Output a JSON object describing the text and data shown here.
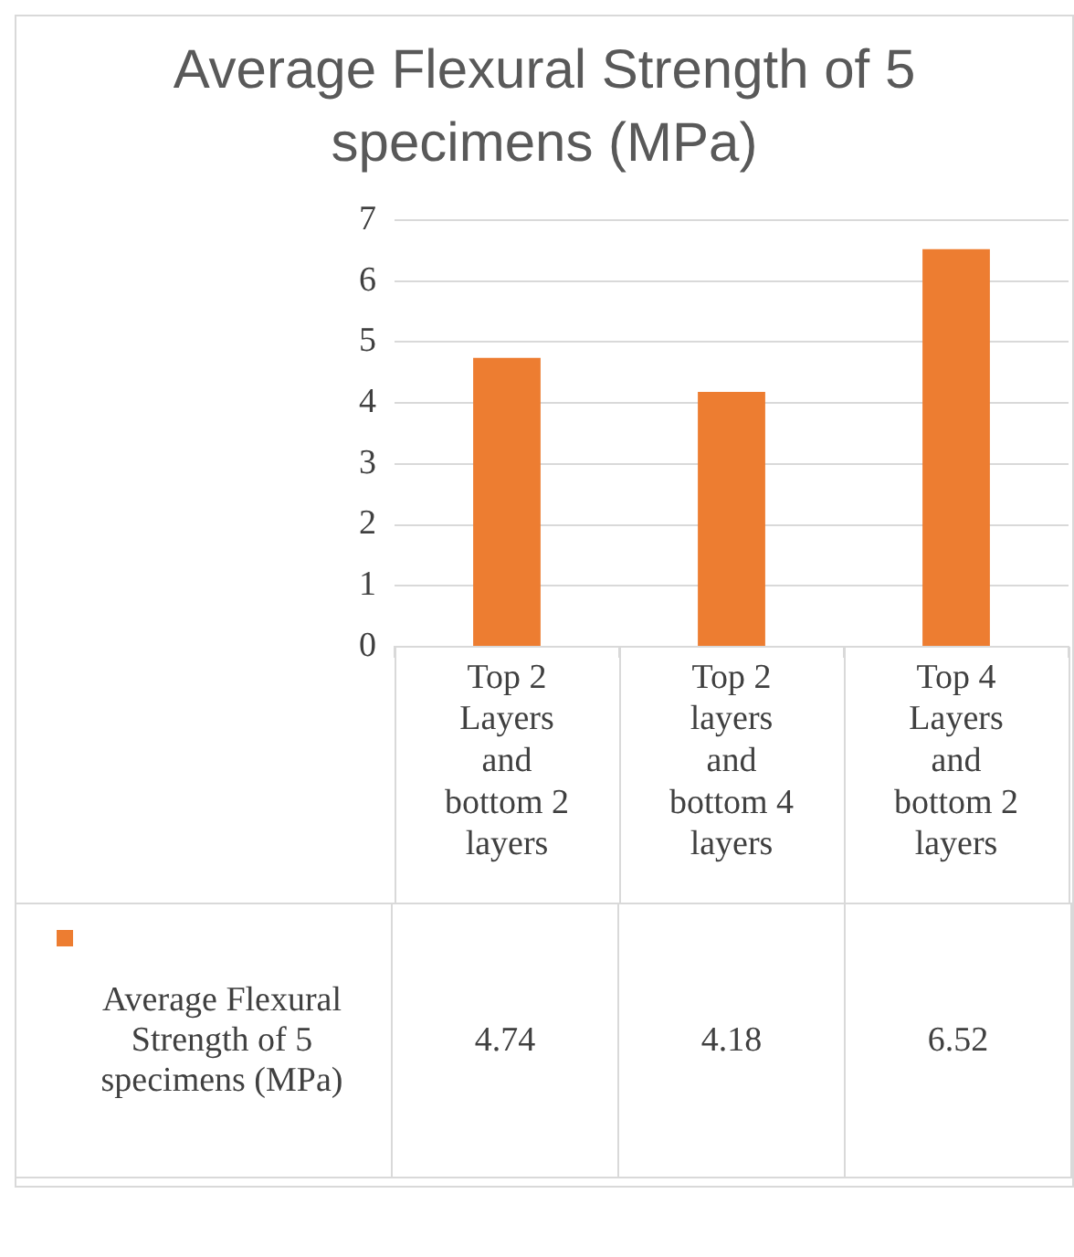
{
  "chart_data": {
    "type": "bar",
    "title": "Average Flexural Strength of 5 specimens (MPa)",
    "categories": [
      "Top 2 Layers and bottom 2 layers",
      "Top 2 layers and bottom 4 layers",
      "Top 4 Layers and bottom 2 layers"
    ],
    "series": [
      {
        "name": "Average Flexural Strength of 5 specimens (MPa)",
        "color": "#ed7d31",
        "values": [
          4.74,
          4.18,
          6.52
        ]
      }
    ],
    "ylim": [
      0,
      7
    ],
    "yticks": [
      0,
      1,
      2,
      3,
      4,
      5,
      6,
      7
    ],
    "grid": "y",
    "legend": "bottom",
    "data_labels": true
  }
}
